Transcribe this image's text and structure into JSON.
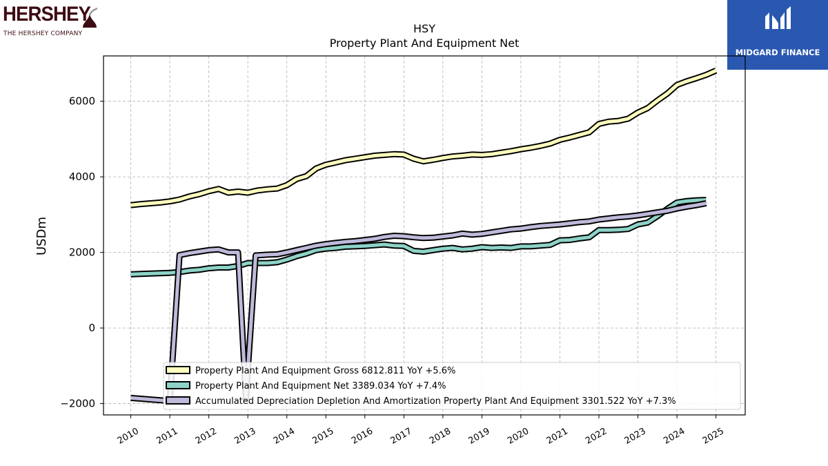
{
  "logos": {
    "left": {
      "brand": "HERSHEY",
      "tagline": "THE HERSHEY COMPANY"
    },
    "right": {
      "name": "MIDGARD FINANCE",
      "color": "#2a58b0"
    }
  },
  "chart_data": {
    "type": "line",
    "title": "HSY",
    "subtitle": "Property Plant And Equipment Net",
    "xlabel": "",
    "ylabel": "USDm",
    "xlim": [
      2009.3,
      2025.75
    ],
    "ylim": [
      -2300,
      7200
    ],
    "yticks": [
      -2000,
      0,
      2000,
      4000,
      6000
    ],
    "xticks": [
      "2010",
      "2011",
      "2012",
      "2013",
      "2014",
      "2015",
      "2016",
      "2017",
      "2018",
      "2019",
      "2020",
      "2021",
      "2022",
      "2023",
      "2024",
      "2025"
    ],
    "grid": true,
    "legend_position": "lower-center",
    "series": [
      {
        "name": "Property Plant And Equipment Gross",
        "legend": "Property Plant And Equipment Gross  6812.811 YoY +5.6%",
        "color": "#ffffbf",
        "x": [
          2010.0,
          2010.25,
          2010.5,
          2010.75,
          2011.0,
          2011.25,
          2011.5,
          2011.75,
          2012.0,
          2012.25,
          2012.5,
          2012.75,
          2013.0,
          2013.25,
          2013.5,
          2013.75,
          2014.0,
          2014.25,
          2014.5,
          2014.75,
          2015.0,
          2015.25,
          2015.5,
          2015.75,
          2016.0,
          2016.25,
          2016.5,
          2016.75,
          2017.0,
          2017.25,
          2017.5,
          2017.75,
          2018.0,
          2018.25,
          2018.5,
          2018.75,
          2019.0,
          2019.25,
          2019.5,
          2019.75,
          2020.0,
          2020.25,
          2020.5,
          2020.75,
          2021.0,
          2021.25,
          2021.5,
          2021.75,
          2022.0,
          2022.25,
          2022.5,
          2022.75,
          2023.0,
          2023.25,
          2023.5,
          2023.75,
          2024.0,
          2024.25,
          2024.5,
          2024.75,
          2025.0
        ],
        "values": [
          3250,
          3280,
          3300,
          3320,
          3350,
          3400,
          3480,
          3540,
          3620,
          3680,
          3580,
          3610,
          3580,
          3640,
          3670,
          3690,
          3780,
          3940,
          4020,
          4220,
          4320,
          4380,
          4440,
          4480,
          4520,
          4560,
          4580,
          4600,
          4590,
          4480,
          4410,
          4450,
          4500,
          4540,
          4560,
          4590,
          4580,
          4600,
          4640,
          4680,
          4730,
          4770,
          4820,
          4880,
          4980,
          5040,
          5110,
          5180,
          5400,
          5460,
          5480,
          5540,
          5700,
          5820,
          6020,
          6200,
          6430,
          6530,
          6610,
          6700,
          6812.811
        ]
      },
      {
        "name": "Property Plant And Equipment Net",
        "legend": "Property Plant And Equipment Net  3389.034 YoY +7.4%",
        "color": "#8dd3c7",
        "x": [
          2010.0,
          2010.25,
          2010.5,
          2010.75,
          2011.0,
          2011.25,
          2011.5,
          2011.75,
          2012.0,
          2012.25,
          2012.5,
          2012.75,
          2013.0,
          2013.25,
          2013.5,
          2013.75,
          2014.0,
          2014.25,
          2014.5,
          2014.75,
          2015.0,
          2015.25,
          2015.5,
          2015.75,
          2016.0,
          2016.25,
          2016.5,
          2016.75,
          2017.0,
          2017.25,
          2017.5,
          2017.75,
          2018.0,
          2018.25,
          2018.5,
          2018.75,
          2019.0,
          2019.25,
          2019.5,
          2019.75,
          2020.0,
          2020.25,
          2020.5,
          2020.75,
          2021.0,
          2021.25,
          2021.5,
          2021.75,
          2022.0,
          2022.25,
          2022.5,
          2022.75,
          2023.0,
          2023.25,
          2023.5,
          2023.75,
          2024.0,
          2024.25,
          2024.5,
          2024.75
        ],
        "values": [
          1420,
          1430,
          1440,
          1450,
          1460,
          1480,
          1520,
          1540,
          1580,
          1600,
          1600,
          1640,
          1720,
          1720,
          1720,
          1740,
          1810,
          1900,
          1970,
          2060,
          2100,
          2120,
          2150,
          2160,
          2170,
          2190,
          2210,
          2180,
          2170,
          2040,
          2020,
          2060,
          2100,
          2120,
          2080,
          2100,
          2140,
          2120,
          2130,
          2120,
          2160,
          2160,
          2180,
          2200,
          2320,
          2330,
          2370,
          2400,
          2590,
          2590,
          2600,
          2620,
          2740,
          2790,
          2960,
          3150,
          3320,
          3360,
          3380,
          3389.034
        ]
      },
      {
        "name": "Accumulated Depreciation Depletion And Amortization Property Plant And Equipment",
        "legend": "Accumulated Depreciation Depletion And Amortization Property Plant And Equipment  3301.522 YoY +7.3%",
        "color": "#bebada",
        "x": [
          2010.0,
          2010.25,
          2010.5,
          2010.75,
          2011.0,
          2011.25,
          2011.5,
          2011.75,
          2012.0,
          2012.25,
          2012.5,
          2012.75,
          2012.95,
          2013.2,
          2013.5,
          2013.75,
          2014.0,
          2014.25,
          2014.5,
          2014.75,
          2015.0,
          2015.25,
          2015.5,
          2015.75,
          2016.0,
          2016.25,
          2016.5,
          2016.75,
          2017.0,
          2017.25,
          2017.5,
          2017.75,
          2018.0,
          2018.25,
          2018.5,
          2018.75,
          2019.0,
          2019.25,
          2019.5,
          2019.75,
          2020.0,
          2020.25,
          2020.5,
          2020.75,
          2021.0,
          2021.25,
          2021.5,
          2021.75,
          2022.0,
          2022.25,
          2022.5,
          2022.75,
          2023.0,
          2023.25,
          2023.5,
          2023.75,
          2024.0,
          2024.25,
          2024.5,
          2024.75
        ],
        "values": [
          -1850,
          -1870,
          -1890,
          -1910,
          -1930,
          1930,
          1980,
          2020,
          2060,
          2080,
          2000,
          2000,
          -1850,
          1920,
          1940,
          1950,
          2000,
          2060,
          2120,
          2180,
          2220,
          2250,
          2280,
          2300,
          2330,
          2360,
          2410,
          2440,
          2430,
          2400,
          2380,
          2390,
          2420,
          2450,
          2500,
          2470,
          2490,
          2530,
          2570,
          2610,
          2630,
          2670,
          2700,
          2720,
          2740,
          2770,
          2800,
          2820,
          2870,
          2900,
          2930,
          2950,
          2980,
          3020,
          3060,
          3100,
          3160,
          3210,
          3250,
          3301.522
        ]
      }
    ]
  }
}
